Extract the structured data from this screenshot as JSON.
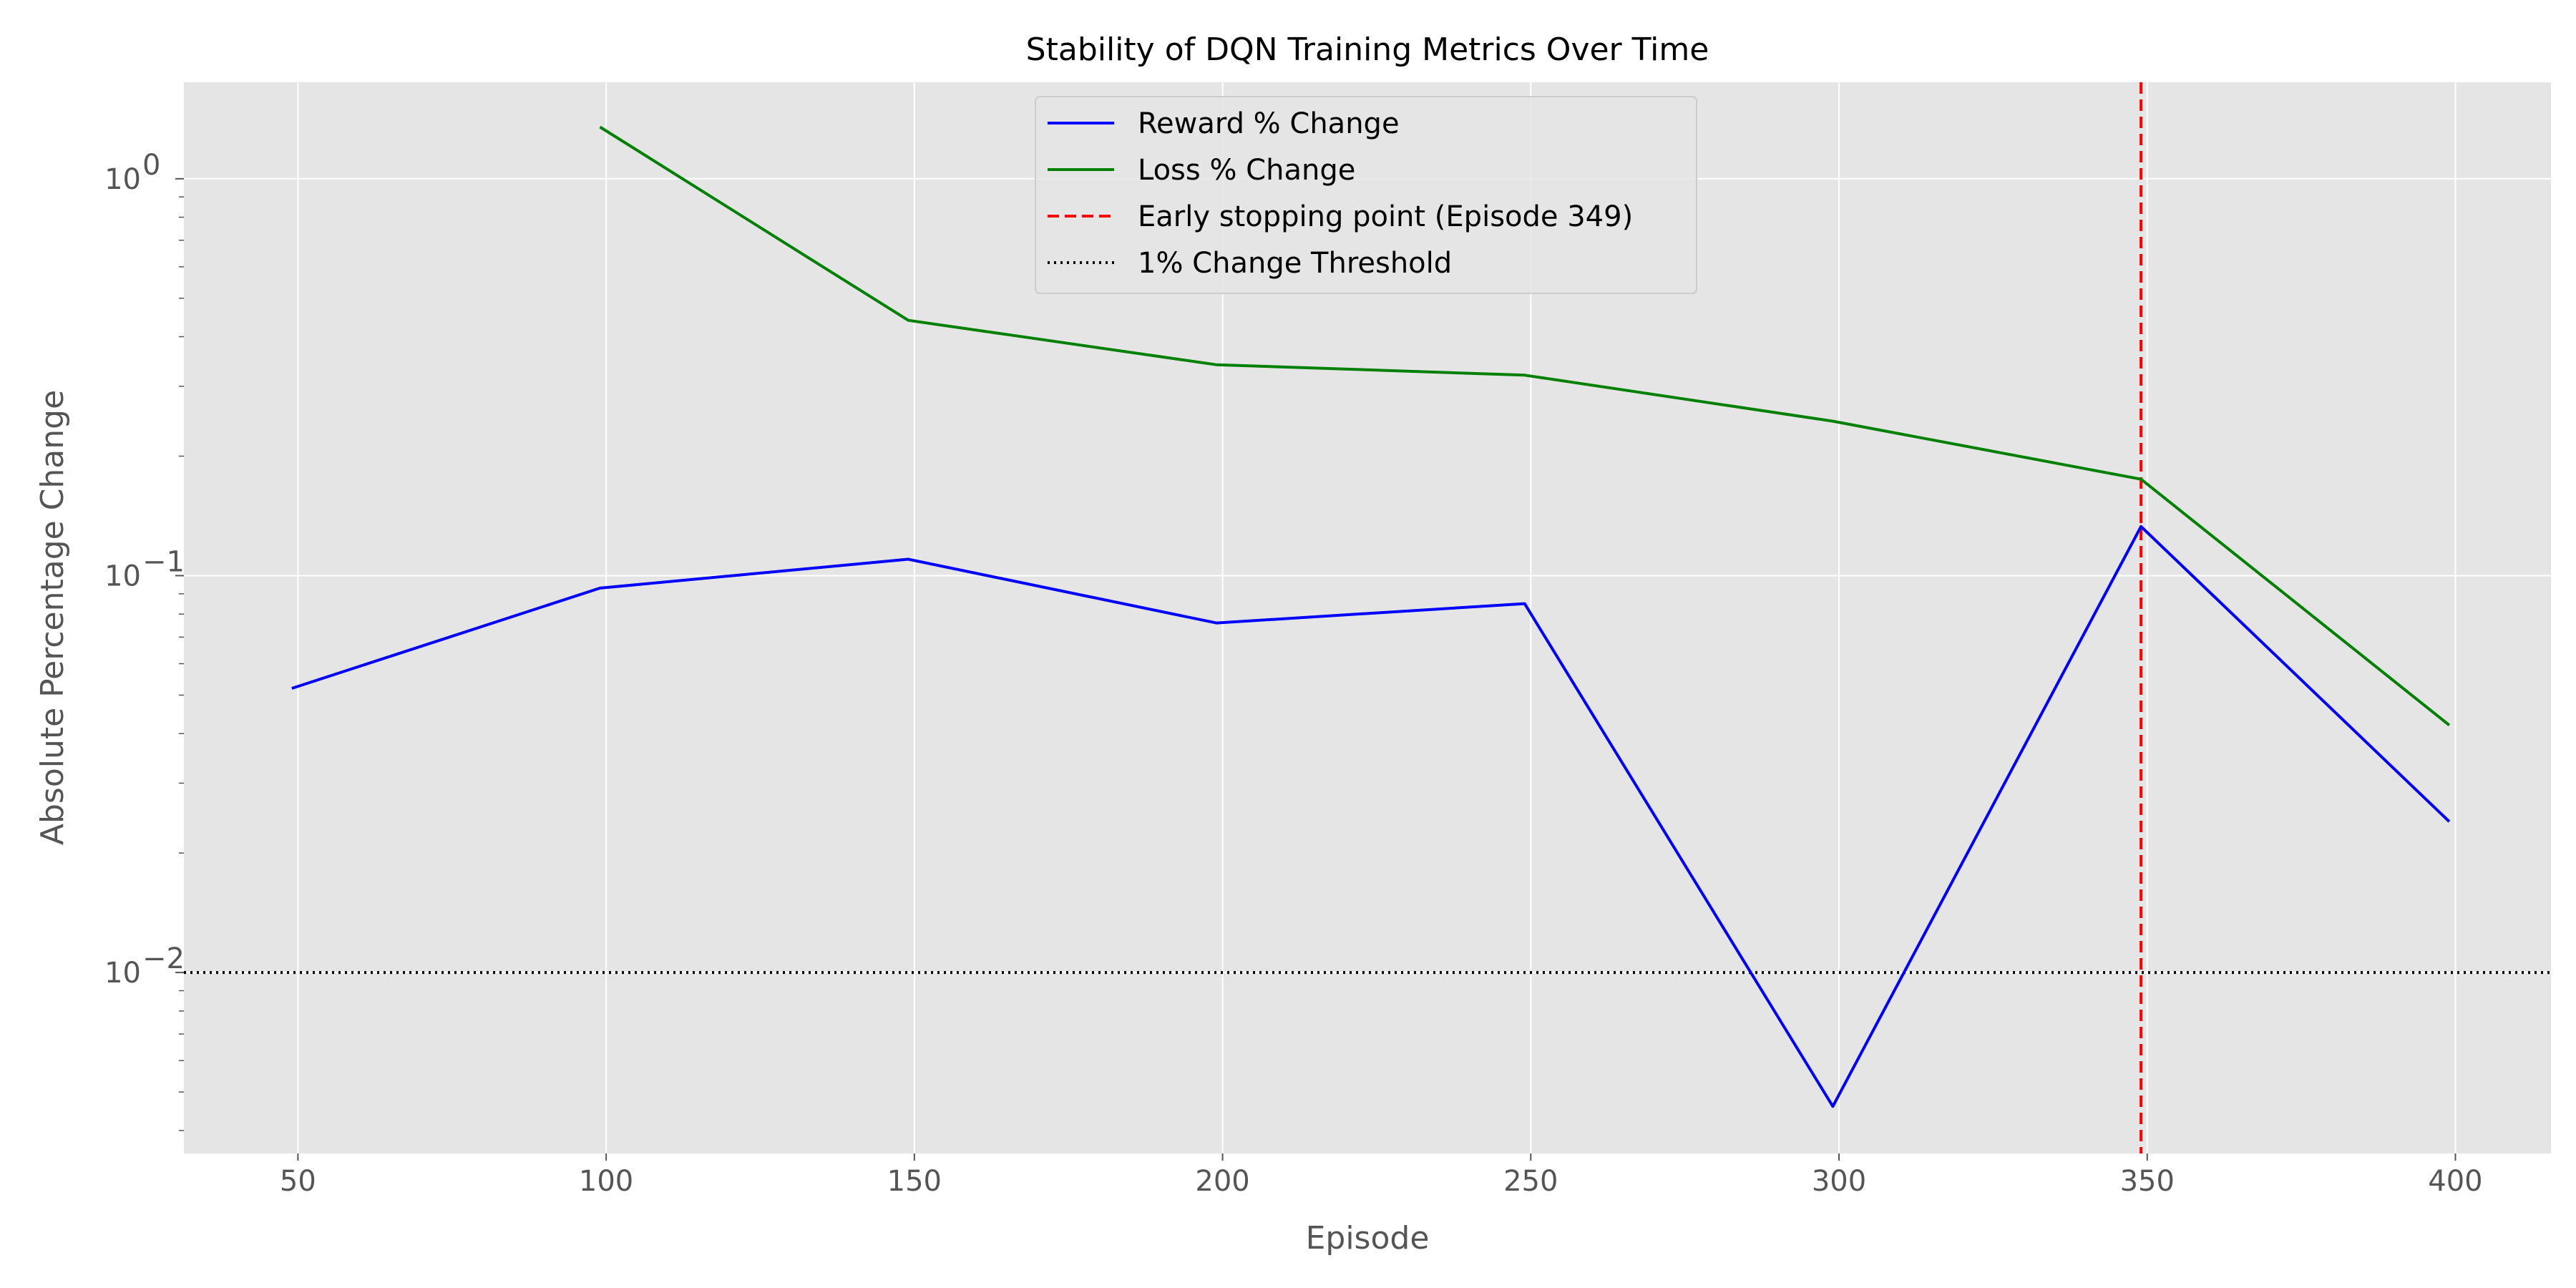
{
  "chart_data": {
    "type": "line",
    "title": "Stability of DQN Training Metrics Over Time",
    "xlabel": "Episode",
    "ylabel": "Absolute Percentage Change",
    "xlim": [
      31.5,
      415.5
    ],
    "ylim": [
      0.0035,
      1.75
    ],
    "yscale": "log",
    "grid": true,
    "legend_position": "top-center",
    "x_ticks": [
      50,
      100,
      150,
      200,
      250,
      300,
      350,
      400
    ],
    "y_ticks": [
      {
        "value": 1,
        "base": "10",
        "exponent": "0"
      },
      {
        "value": 0.1,
        "base": "10",
        "exponent": "−1"
      },
      {
        "value": 0.01,
        "base": "10",
        "exponent": "−2"
      }
    ],
    "series": [
      {
        "name": "Reward % Change",
        "color": "#0000ff",
        "style": "solid",
        "x": [
          49,
          99,
          149,
          199,
          249,
          299,
          349,
          399
        ],
        "y": [
          0.052,
          0.093,
          0.11,
          0.076,
          0.085,
          0.0046,
          0.133,
          0.024
        ]
      },
      {
        "name": "Loss % Change",
        "color": "#008000",
        "style": "solid",
        "x": [
          99,
          149,
          199,
          249,
          299,
          349,
          399
        ],
        "y": [
          1.35,
          0.44,
          0.34,
          0.32,
          0.245,
          0.175,
          0.042
        ]
      }
    ],
    "reference_lines": [
      {
        "name": "Early stopping point (Episode 349)",
        "orientation": "vertical",
        "value": 349,
        "color": "#ff0000",
        "style": "dashed"
      },
      {
        "name": "1% Change Threshold",
        "orientation": "horizontal",
        "value": 0.01,
        "color": "#000000",
        "style": "dotted"
      }
    ]
  }
}
